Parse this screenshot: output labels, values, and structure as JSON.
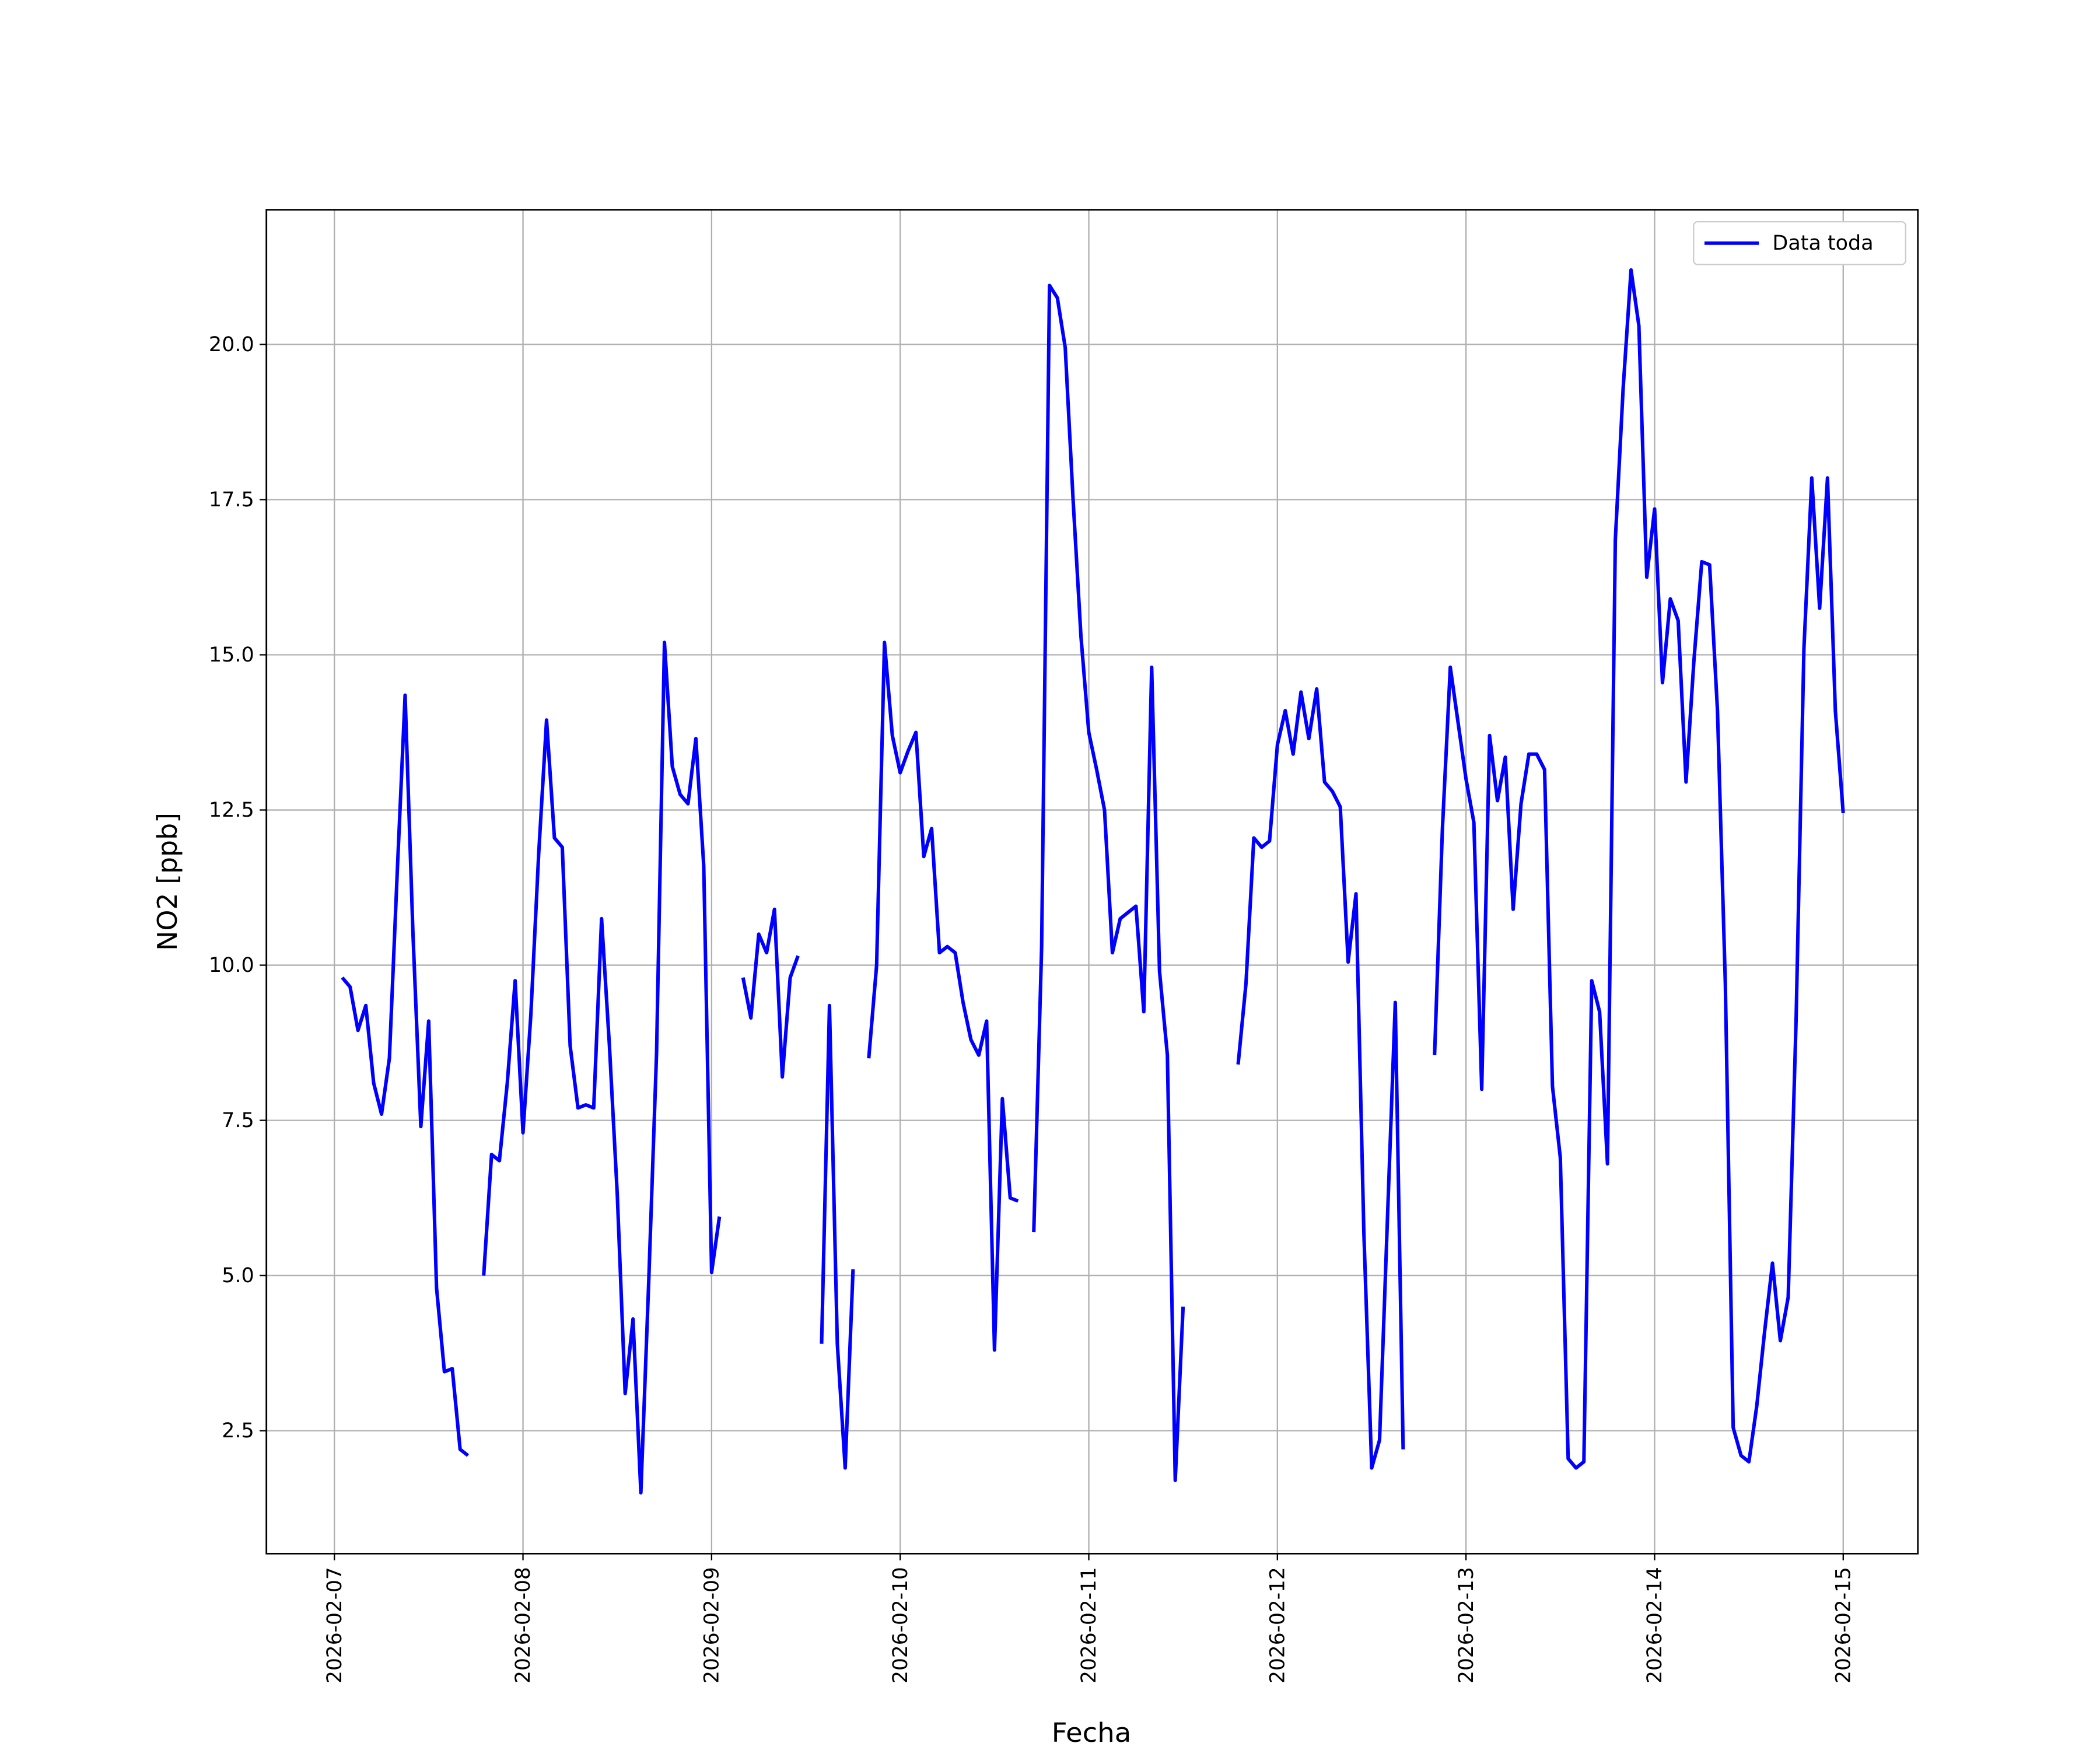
{
  "chart_data": {
    "type": "line",
    "xlabel": "Fecha",
    "ylabel": "NO2 [ppb]",
    "xlim": [
      "2026-02-06T15:21",
      "2026-02-15T09:30"
    ],
    "xticks": [
      "2026-02-07",
      "2026-02-08",
      "2026-02-09",
      "2026-02-10",
      "2026-02-11",
      "2026-02-12",
      "2026-02-13",
      "2026-02-14",
      "2026-02-15"
    ],
    "ylim": [
      0.52,
      22.17
    ],
    "yticks": [
      2.5,
      {
        "value": 5,
        "label": "5.0"
      },
      7.5,
      {
        "value": 10,
        "label": "10.0"
      },
      12.5,
      {
        "value": 15,
        "label": "15.0"
      },
      17.5,
      {
        "value": 20,
        "label": "20.0"
      }
    ],
    "grid": true,
    "legend": "upper right",
    "x": [
      "2026-02-07T01:00",
      "2026-02-07T02:00",
      "2026-02-07T03:00",
      "2026-02-07T04:00",
      "2026-02-07T05:00",
      "2026-02-07T06:00",
      "2026-02-07T07:00",
      "2026-02-07T08:00",
      "2026-02-07T09:00",
      "2026-02-07T10:00",
      "2026-02-07T11:00",
      "2026-02-07T12:00",
      "2026-02-07T13:00",
      "2026-02-07T14:00",
      "2026-02-07T15:00",
      "2026-02-07T16:00",
      "2026-02-07T17:00",
      "2026-02-07T18:00",
      "2026-02-07T19:00",
      "2026-02-07T20:00",
      "2026-02-07T21:00",
      "2026-02-07T22:00",
      "2026-02-07T23:00",
      "2026-02-08T00:00",
      "2026-02-08T01:00",
      "2026-02-08T02:00",
      "2026-02-08T03:00",
      "2026-02-08T04:00",
      "2026-02-08T05:00",
      "2026-02-08T06:00",
      "2026-02-08T07:00",
      "2026-02-08T08:00",
      "2026-02-08T09:00",
      "2026-02-08T10:00",
      "2026-02-08T11:00",
      "2026-02-08T12:00",
      "2026-02-08T13:00",
      "2026-02-08T14:00",
      "2026-02-08T15:00",
      "2026-02-08T16:00",
      "2026-02-08T17:00",
      "2026-02-08T18:00",
      "2026-02-08T19:00",
      "2026-02-08T20:00",
      "2026-02-08T21:00",
      "2026-02-08T22:00",
      "2026-02-08T23:00",
      "2026-02-09T00:00",
      "2026-02-09T01:00",
      "2026-02-09T02:00",
      "2026-02-09T03:00",
      "2026-02-09T04:00",
      "2026-02-09T05:00",
      "2026-02-09T06:00",
      "2026-02-09T07:00",
      "2026-02-09T08:00",
      "2026-02-09T09:00",
      "2026-02-09T10:00",
      "2026-02-09T11:00",
      "2026-02-09T12:00",
      "2026-02-09T13:00",
      "2026-02-09T14:00",
      "2026-02-09T15:00",
      "2026-02-09T16:00",
      "2026-02-09T17:00",
      "2026-02-09T18:00",
      "2026-02-09T19:00",
      "2026-02-09T20:00",
      "2026-02-09T21:00",
      "2026-02-09T22:00",
      "2026-02-09T23:00",
      "2026-02-10T00:00",
      "2026-02-10T01:00",
      "2026-02-10T02:00",
      "2026-02-10T03:00",
      "2026-02-10T04:00",
      "2026-02-10T05:00",
      "2026-02-10T06:00",
      "2026-02-10T07:00",
      "2026-02-10T08:00",
      "2026-02-10T09:00",
      "2026-02-10T10:00",
      "2026-02-10T11:00",
      "2026-02-10T12:00",
      "2026-02-10T13:00",
      "2026-02-10T14:00",
      "2026-02-10T15:00",
      "2026-02-10T16:00",
      "2026-02-10T17:00",
      "2026-02-10T18:00",
      "2026-02-10T19:00",
      "2026-02-10T20:00",
      "2026-02-10T21:00",
      "2026-02-10T22:00",
      "2026-02-10T23:00",
      "2026-02-11T00:00",
      "2026-02-11T01:00",
      "2026-02-11T02:00",
      "2026-02-11T03:00",
      "2026-02-11T04:00",
      "2026-02-11T05:00",
      "2026-02-11T06:00",
      "2026-02-11T07:00",
      "2026-02-11T08:00",
      "2026-02-11T09:00",
      "2026-02-11T10:00",
      "2026-02-11T11:00",
      "2026-02-11T12:00",
      "2026-02-11T13:00",
      "2026-02-11T14:00",
      "2026-02-11T15:00",
      "2026-02-11T16:00",
      "2026-02-11T17:00",
      "2026-02-11T18:00",
      "2026-02-11T19:00",
      "2026-02-11T20:00",
      "2026-02-11T21:00",
      "2026-02-11T22:00",
      "2026-02-11T23:00",
      "2026-02-12T00:00",
      "2026-02-12T01:00",
      "2026-02-12T02:00",
      "2026-02-12T03:00",
      "2026-02-12T04:00",
      "2026-02-12T05:00",
      "2026-02-12T06:00",
      "2026-02-12T07:00",
      "2026-02-12T08:00",
      "2026-02-12T09:00",
      "2026-02-12T10:00",
      "2026-02-12T11:00",
      "2026-02-12T12:00",
      "2026-02-12T13:00",
      "2026-02-12T14:00",
      "2026-02-12T15:00",
      "2026-02-12T16:00",
      "2026-02-12T17:00",
      "2026-02-12T18:00",
      "2026-02-12T19:00",
      "2026-02-12T20:00",
      "2026-02-12T21:00",
      "2026-02-12T22:00",
      "2026-02-12T23:00",
      "2026-02-13T00:00",
      "2026-02-13T01:00",
      "2026-02-13T02:00",
      "2026-02-13T03:00",
      "2026-02-13T04:00",
      "2026-02-13T05:00",
      "2026-02-13T06:00",
      "2026-02-13T07:00",
      "2026-02-13T08:00",
      "2026-02-13T09:00",
      "2026-02-13T10:00",
      "2026-02-13T11:00",
      "2026-02-13T12:00",
      "2026-02-13T13:00",
      "2026-02-13T14:00",
      "2026-02-13T15:00",
      "2026-02-13T16:00",
      "2026-02-13T17:00",
      "2026-02-13T18:00",
      "2026-02-13T19:00",
      "2026-02-13T20:00",
      "2026-02-13T21:00",
      "2026-02-13T22:00",
      "2026-02-13T23:00",
      "2026-02-14T00:00",
      "2026-02-14T01:00",
      "2026-02-14T02:00",
      "2026-02-14T03:00",
      "2026-02-14T04:00",
      "2026-02-14T05:00",
      "2026-02-14T06:00",
      "2026-02-14T07:00",
      "2026-02-14T08:00",
      "2026-02-14T09:00",
      "2026-02-14T10:00",
      "2026-02-14T11:00",
      "2026-02-14T12:00",
      "2026-02-14T13:00",
      "2026-02-14T14:00",
      "2026-02-14T15:00",
      "2026-02-14T16:00",
      "2026-02-14T17:00",
      "2026-02-14T18:00",
      "2026-02-14T19:00",
      "2026-02-14T20:00",
      "2026-02-14T21:00",
      "2026-02-14T22:00",
      "2026-02-14T23:00",
      "2026-02-15T00:00"
    ],
    "series": [
      {
        "name": "Data toda",
        "color": "#0000ff",
        "values": [
          9.8,
          9.65,
          8.95,
          9.35,
          8.1,
          7.6,
          8.5,
          11.5,
          14.35,
          10.5,
          7.4,
          9.1,
          4.8,
          3.45,
          3.5,
          2.2,
          2.1,
          null,
          5.0,
          6.95,
          6.85,
          8.1,
          9.75,
          7.3,
          9.2,
          11.8,
          13.95,
          12.05,
          11.9,
          8.7,
          7.7,
          7.75,
          7.7,
          10.75,
          8.7,
          6.3,
          3.1,
          4.3,
          1.5,
          4.9,
          8.6,
          15.2,
          13.2,
          12.75,
          12.6,
          13.65,
          11.6,
          5.05,
          5.95,
          null,
          null,
          9.8,
          9.15,
          10.5,
          10.2,
          10.9,
          8.2,
          9.8,
          10.15,
          null,
          null,
          3.9,
          9.35,
          3.9,
          1.9,
          5.1,
          null,
          8.5,
          10.0,
          15.2,
          13.7,
          13.1,
          13.45,
          13.75,
          11.75,
          12.2,
          10.2,
          10.3,
          10.2,
          9.4,
          8.8,
          8.55,
          9.1,
          3.8,
          7.85,
          6.25,
          6.2,
          null,
          5.7,
          10.3,
          20.95,
          20.75,
          19.95,
          17.5,
          15.3,
          13.75,
          13.15,
          12.5,
          10.2,
          10.75,
          10.85,
          10.95,
          9.25,
          14.8,
          9.9,
          8.55,
          1.7,
          4.5,
          null,
          null,
          null,
          null,
          null,
          null,
          8.4,
          9.7,
          12.05,
          11.9,
          12.0,
          13.55,
          14.1,
          13.4,
          14.4,
          13.65,
          14.45,
          12.95,
          12.8,
          12.55,
          10.05,
          11.15,
          5.7,
          1.9,
          2.35,
          5.9,
          9.4,
          2.2,
          null,
          null,
          null,
          8.55,
          12.2,
          14.8,
          13.9,
          13.0,
          12.3,
          8.0,
          13.7,
          12.65,
          13.35,
          10.9,
          12.6,
          13.4,
          13.4,
          13.15,
          8.05,
          6.9,
          2.05,
          1.9,
          2.0,
          9.75,
          9.25,
          6.8,
          16.85,
          19.3,
          21.2,
          20.3,
          16.25,
          17.35,
          14.55,
          15.9,
          15.55,
          12.95,
          14.9,
          16.5,
          16.45,
          14.1,
          9.7,
          2.55,
          2.1,
          2.0,
          2.9,
          4.1,
          5.2,
          3.95,
          4.65,
          9.1,
          15.1,
          17.85,
          15.75,
          17.85,
          14.1,
          12.45
        ]
      }
    ]
  }
}
